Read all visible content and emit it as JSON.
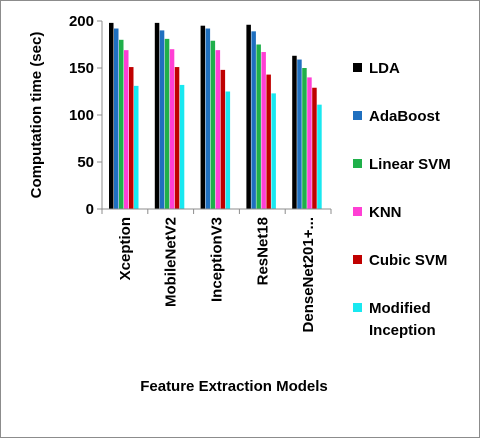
{
  "chart_data": {
    "type": "bar",
    "title": "",
    "xlabel": "Feature Extraction Models",
    "ylabel": "Computation time (sec)",
    "ylim": [
      0,
      200
    ],
    "yticks": [
      0,
      50,
      100,
      150,
      200
    ],
    "grid": false,
    "legend_position": "right",
    "categories": [
      "Xception",
      "MobileNetV2",
      "InceptionV3",
      "ResNet18",
      "DenseNet201+..."
    ],
    "series": [
      {
        "name": "LDA",
        "color": "#000000",
        "values": [
          198,
          198,
          195,
          196,
          163
        ]
      },
      {
        "name": "AdaBoost",
        "color": "#1f6fbf",
        "values": [
          192,
          190,
          192,
          189,
          159
        ]
      },
      {
        "name": "Linear SVM",
        "color": "#1fb04a",
        "values": [
          180,
          181,
          179,
          175,
          150
        ]
      },
      {
        "name": "KNN",
        "color": "#ff3fd4",
        "values": [
          169,
          170,
          169,
          167,
          140
        ]
      },
      {
        "name": "Cubic SVM",
        "color": "#c00000",
        "values": [
          151,
          151,
          148,
          143,
          129
        ]
      },
      {
        "name": "Modified Inception",
        "legend_lines": [
          "Modified",
          "Inception"
        ],
        "color": "#19e8f0",
        "values": [
          131,
          132,
          125,
          123,
          111
        ]
      }
    ]
  }
}
